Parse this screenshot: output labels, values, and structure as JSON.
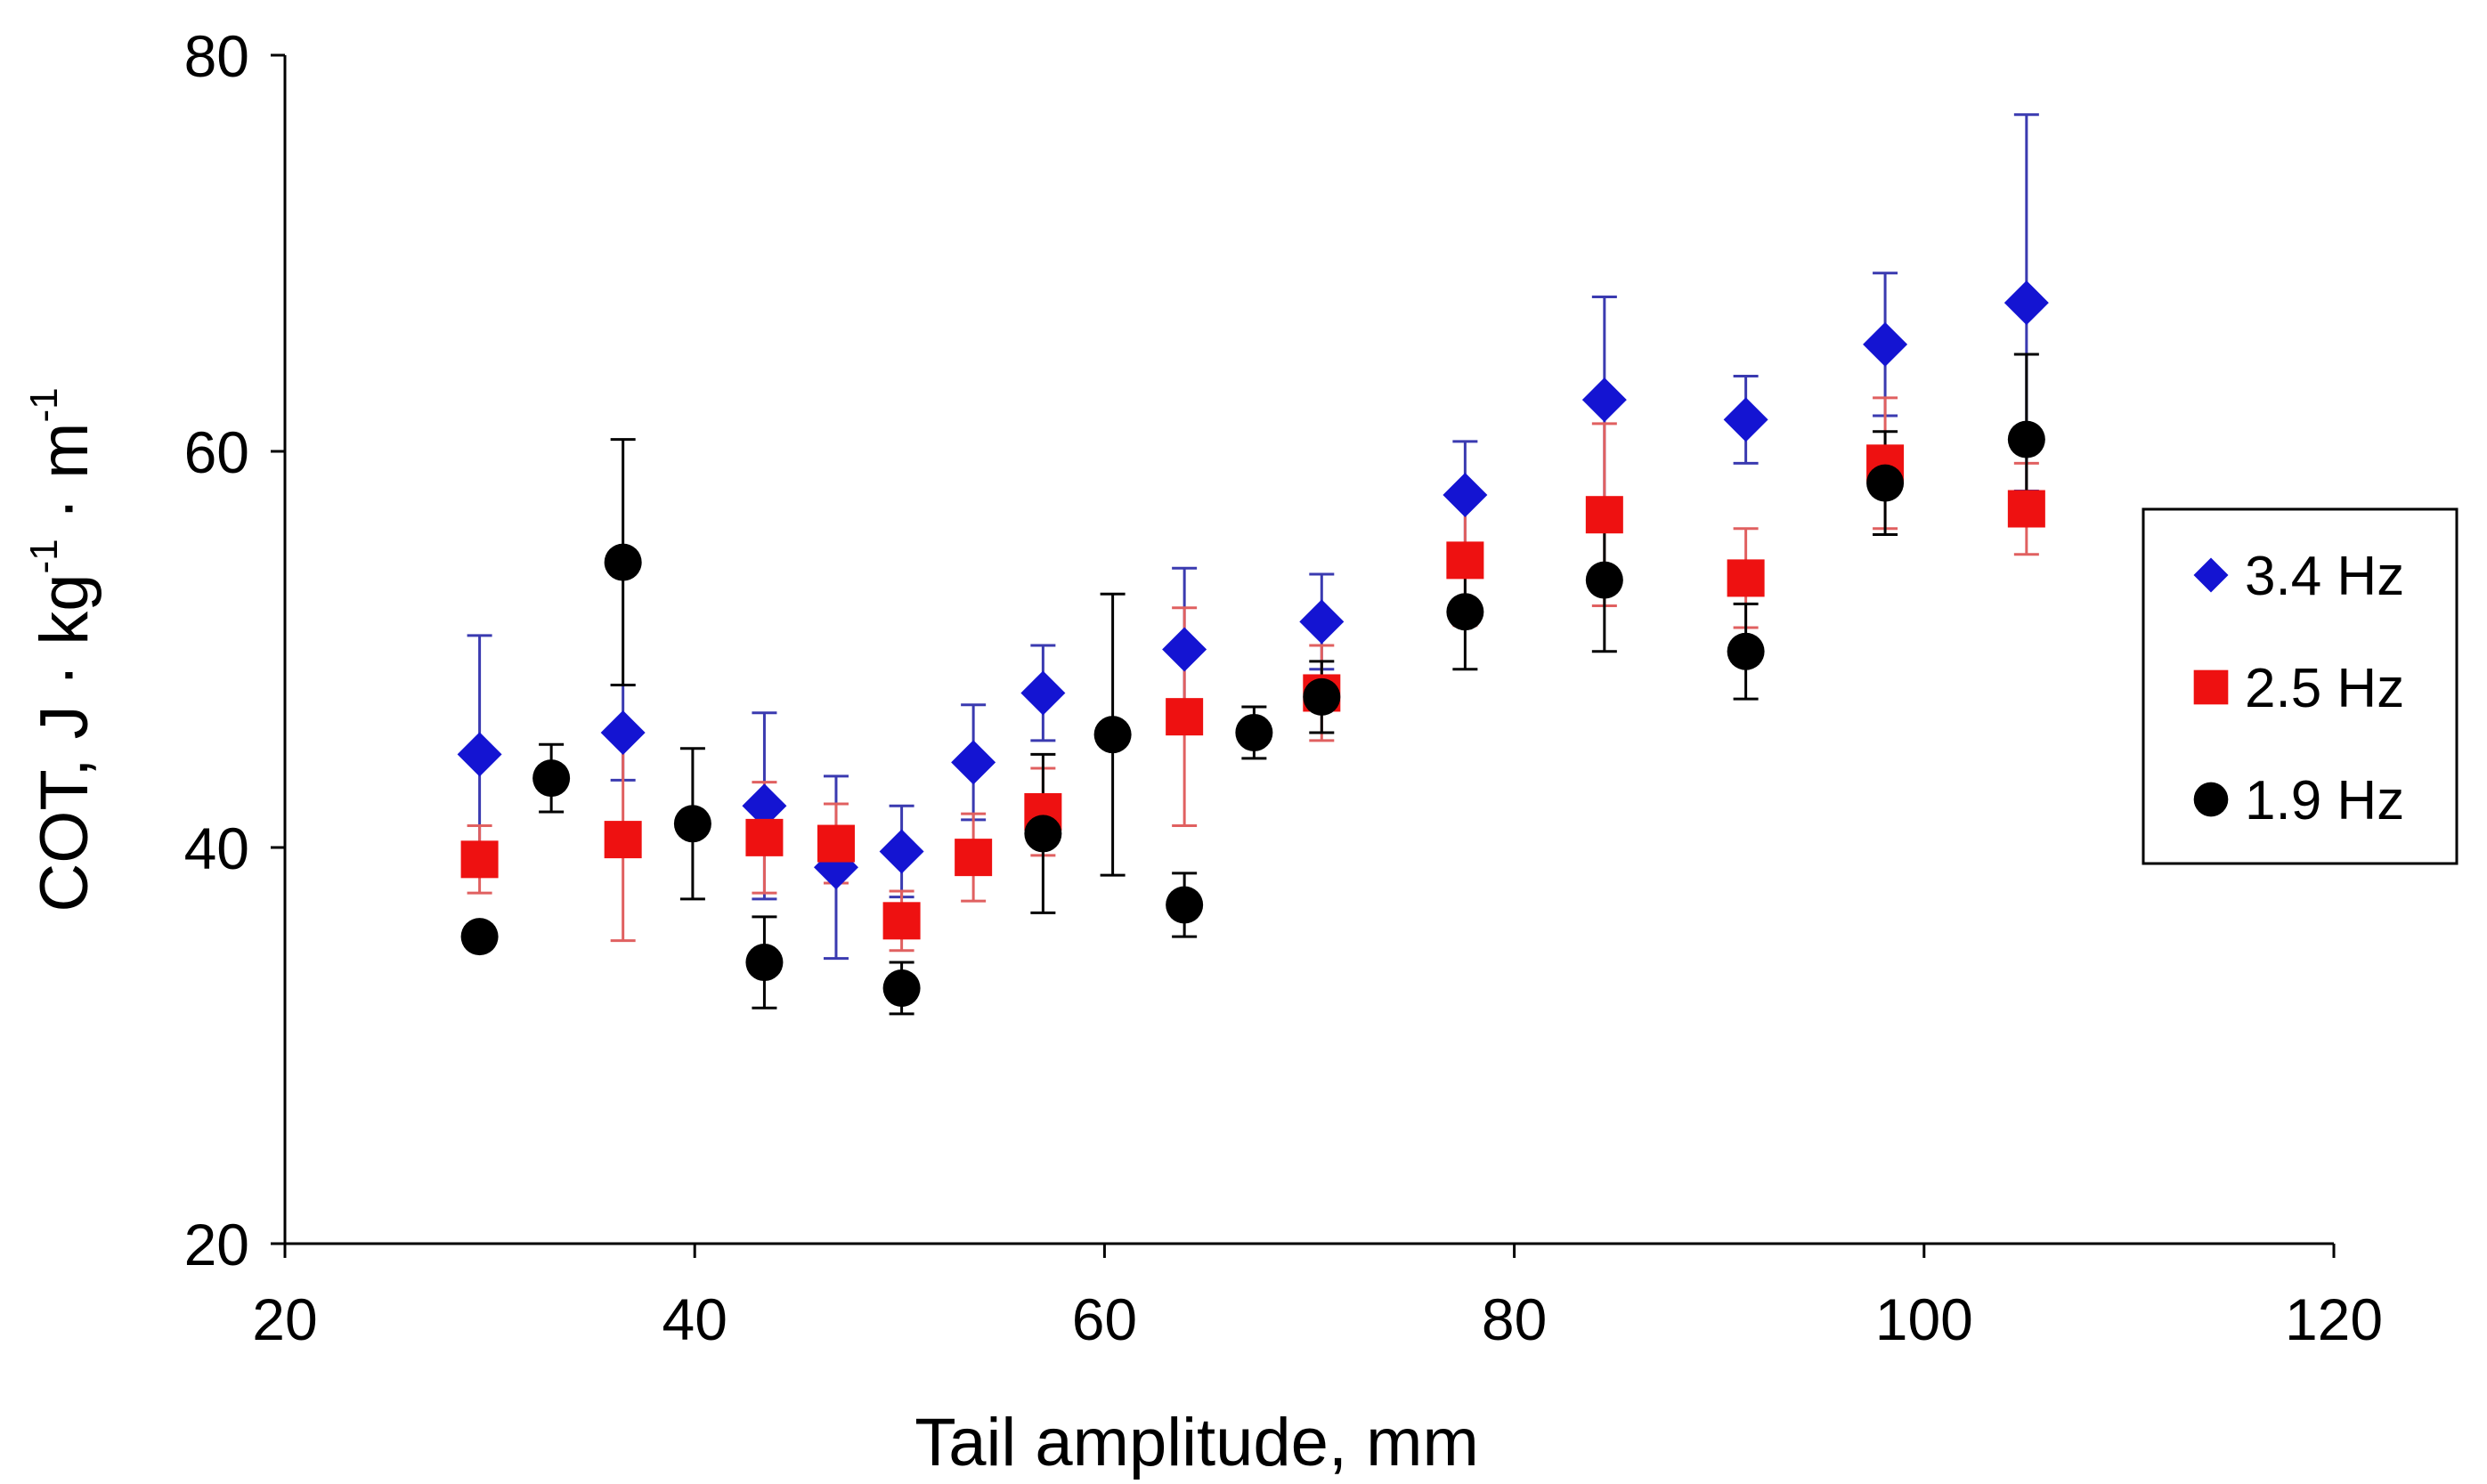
{
  "chart_data": {
    "type": "scatter",
    "title": "",
    "xlabel": "Tail amplitude, mm",
    "ylabel": {
      "main": "COT, J · kg",
      "exp1": "-1",
      "mid": " · m",
      "exp2": "-1"
    },
    "xlim": [
      20,
      120
    ],
    "ylim": [
      20,
      80
    ],
    "xticks": [
      20,
      40,
      60,
      80,
      100,
      120
    ],
    "yticks": [
      20,
      40,
      60,
      80
    ],
    "xtick_labels": [
      "20",
      "40",
      "60",
      "80",
      "100",
      "120"
    ],
    "ytick_labels": [
      "20",
      "40",
      "60",
      "80"
    ],
    "grid": false,
    "legend_position": "right",
    "series": [
      {
        "name": "3.4 Hz",
        "marker": "diamond",
        "color": "#1414d2",
        "error_color": "#3a3ab0",
        "points": [
          {
            "x": 29.5,
            "y": 44.7,
            "err": 6.0
          },
          {
            "x": 36.5,
            "y": 45.8,
            "err": 2.4
          },
          {
            "x": 43.4,
            "y": 42.1,
            "err": 4.7
          },
          {
            "x": 46.9,
            "y": 39.0,
            "err": 4.6
          },
          {
            "x": 50.1,
            "y": 39.8,
            "err": 2.3
          },
          {
            "x": 53.6,
            "y": 44.3,
            "err": 2.9
          },
          {
            "x": 57.0,
            "y": 47.8,
            "err": 2.4
          },
          {
            "x": 63.9,
            "y": 50.0,
            "err": 4.1
          },
          {
            "x": 70.6,
            "y": 51.4,
            "err": 2.4
          },
          {
            "x": 77.6,
            "y": 57.8,
            "err": 2.7
          },
          {
            "x": 84.4,
            "y": 62.6,
            "err": 5.2
          },
          {
            "x": 91.3,
            "y": 61.6,
            "err": 2.2
          },
          {
            "x": 98.1,
            "y": 65.4,
            "err": 3.6
          },
          {
            "x": 105.0,
            "y": 67.5,
            "err": 9.5
          }
        ]
      },
      {
        "name": "2.5 Hz",
        "marker": "square",
        "color": "#ee1111",
        "error_color": "#e06060",
        "points": [
          {
            "x": 29.5,
            "y": 39.4,
            "err": 1.7
          },
          {
            "x": 36.5,
            "y": 40.4,
            "err": 5.1
          },
          {
            "x": 43.4,
            "y": 40.5,
            "err": 2.8
          },
          {
            "x": 46.9,
            "y": 40.2,
            "err": 2.0
          },
          {
            "x": 50.1,
            "y": 36.3,
            "err": 1.5
          },
          {
            "x": 53.6,
            "y": 39.5,
            "err": 2.2
          },
          {
            "x": 57.0,
            "y": 41.8,
            "err": 2.2
          },
          {
            "x": 63.9,
            "y": 46.6,
            "err": 5.5
          },
          {
            "x": 70.6,
            "y": 47.8,
            "err": 2.4
          },
          {
            "x": 77.6,
            "y": 54.5,
            "err": 3.3
          },
          {
            "x": 84.4,
            "y": 56.8,
            "err": 4.6
          },
          {
            "x": 91.3,
            "y": 53.6,
            "err": 2.5
          },
          {
            "x": 98.1,
            "y": 59.4,
            "err": 3.3
          },
          {
            "x": 105.0,
            "y": 57.1,
            "err": 2.3
          }
        ]
      },
      {
        "name": "1.9 Hz",
        "marker": "circle",
        "color": "#000000",
        "error_color": "#000000",
        "points": [
          {
            "x": 29.5,
            "y": 35.5,
            "err": 0.0
          },
          {
            "x": 33.0,
            "y": 43.5,
            "err": 1.7
          },
          {
            "x": 36.5,
            "y": 54.4,
            "err": 6.2
          },
          {
            "x": 39.9,
            "y": 41.2,
            "err": 3.8
          },
          {
            "x": 43.4,
            "y": 34.2,
            "err": 2.3
          },
          {
            "x": 50.1,
            "y": 32.9,
            "err": 1.3
          },
          {
            "x": 57.0,
            "y": 40.7,
            "err": 4.0
          },
          {
            "x": 60.4,
            "y": 45.7,
            "err": 7.1
          },
          {
            "x": 63.9,
            "y": 37.1,
            "err": 1.6
          },
          {
            "x": 67.3,
            "y": 45.8,
            "err": 1.3
          },
          {
            "x": 70.6,
            "y": 47.6,
            "err": 1.8
          },
          {
            "x": 77.6,
            "y": 51.9,
            "err": 2.9
          },
          {
            "x": 84.4,
            "y": 53.5,
            "err": 3.6
          },
          {
            "x": 91.3,
            "y": 49.9,
            "err": 2.4
          },
          {
            "x": 98.1,
            "y": 58.4,
            "err": 2.6
          },
          {
            "x": 105.0,
            "y": 60.6,
            "err": 4.3
          }
        ]
      }
    ]
  }
}
